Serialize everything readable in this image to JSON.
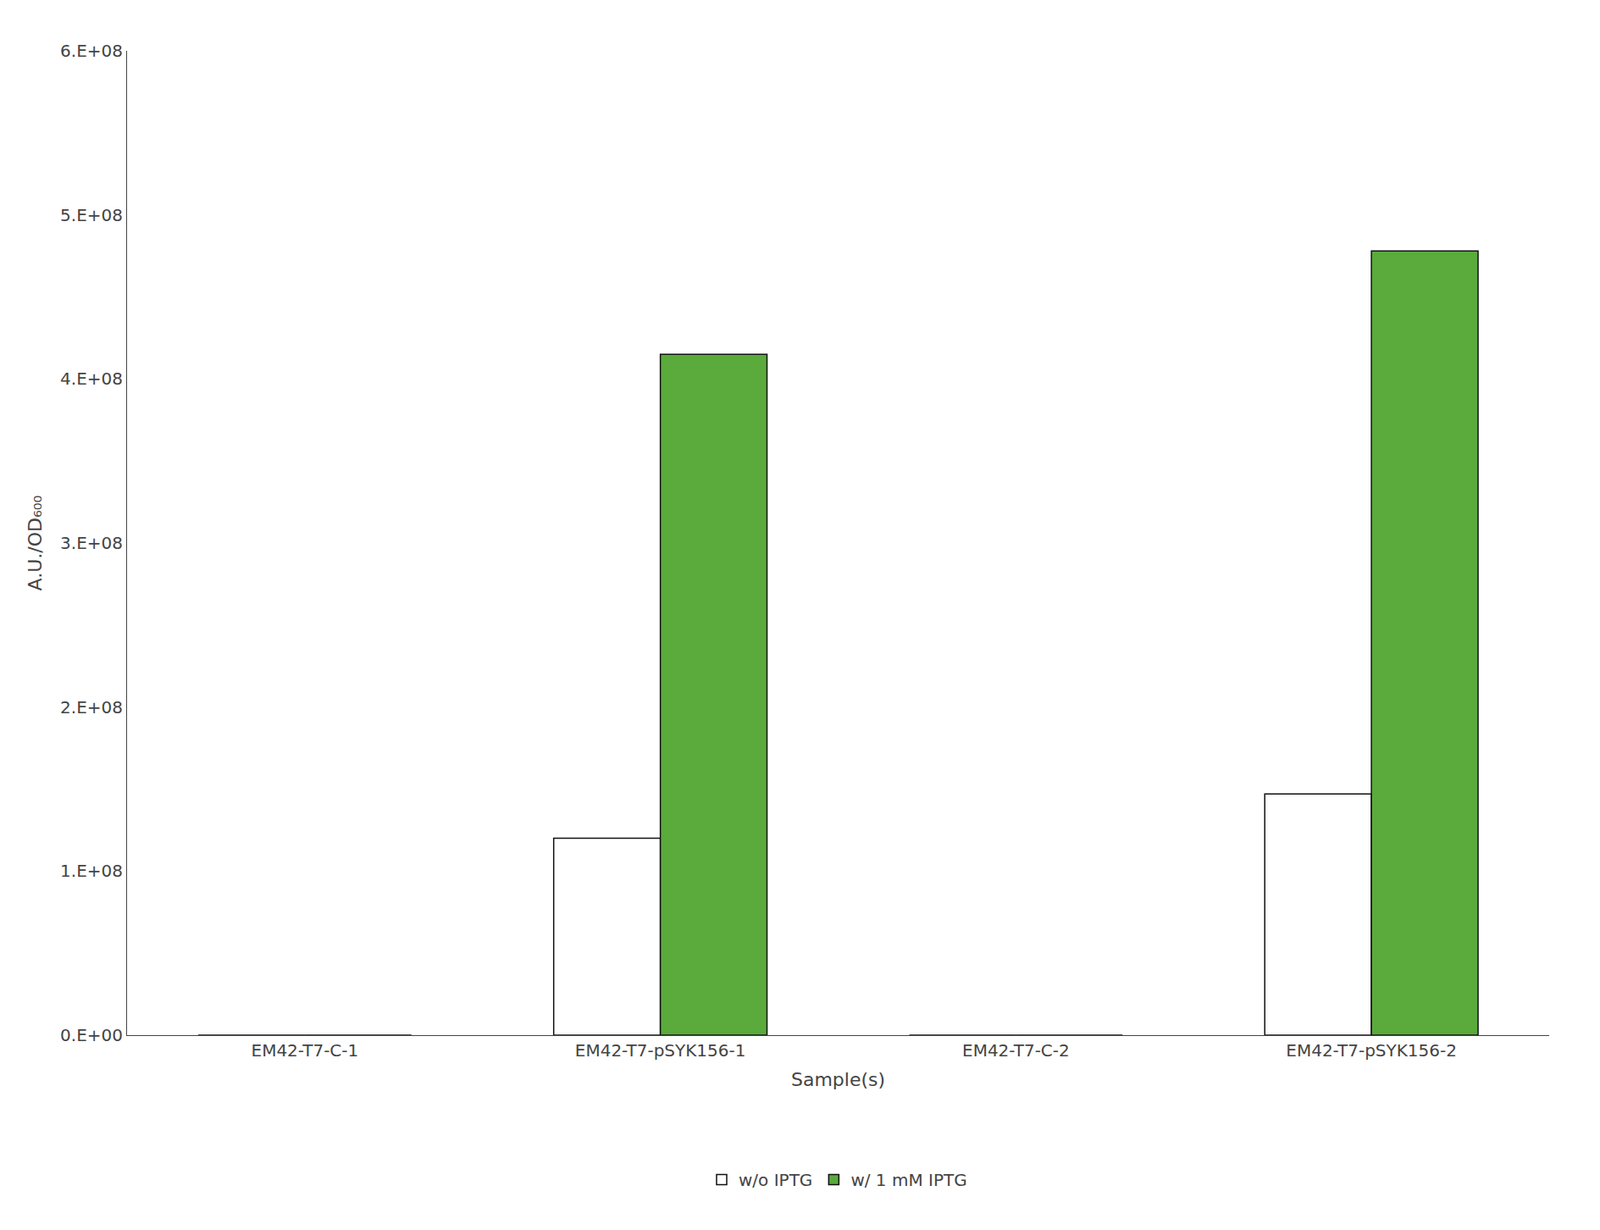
{
  "chart_data": {
    "type": "bar",
    "xlabel": "Sample(s)",
    "ylabel": "A.U./OD₆₀₀",
    "categories": [
      "EM42-T7-C-1",
      "EM42-T7-pSYK156-1",
      "EM42-T7-C-2",
      "EM42-T7-pSYK156-2"
    ],
    "series": [
      {
        "name": "w/o IPTG",
        "color": "#ffffff",
        "values": [
          0,
          120000000,
          0,
          147000000
        ]
      },
      {
        "name": "w/ 1 mM IPTG",
        "color": "#5aaa3c",
        "values": [
          0,
          415000000,
          0,
          478000000
        ]
      }
    ],
    "ylim": [
      0,
      600000000
    ],
    "yticks": [
      {
        "value": 0,
        "label": "0.E+00"
      },
      {
        "value": 100000000,
        "label": "1.E+08"
      },
      {
        "value": 200000000,
        "label": "2.E+08"
      },
      {
        "value": 300000000,
        "label": "3.E+08"
      },
      {
        "value": 400000000,
        "label": "4.E+08"
      },
      {
        "value": 500000000,
        "label": "5.E+08"
      },
      {
        "value": 600000000,
        "label": "6.E+08"
      }
    ],
    "grid": false,
    "legend": "bottom"
  }
}
